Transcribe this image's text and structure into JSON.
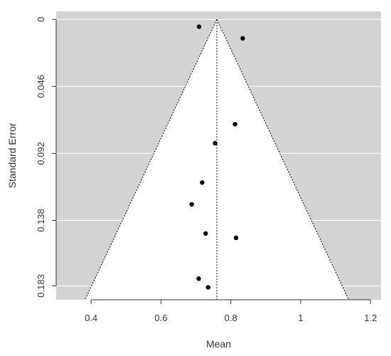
{
  "chart_data": {
    "type": "scatter",
    "chart_kind": "funnel plot",
    "xlabel": "Mean",
    "ylabel": "Standard Error",
    "xlim": [
      0.3,
      1.23
    ],
    "ylim": [
      0.1925,
      -0.0055
    ],
    "y_reversed": true,
    "x_ticks": [
      0.4,
      0.6,
      0.8,
      1.0,
      1.2
    ],
    "x_tick_labels": [
      "0.4",
      "0.6",
      "0.8",
      "1",
      "1.2"
    ],
    "y_ticks": [
      0,
      0.046,
      0.092,
      0.138,
      0.183
    ],
    "y_tick_labels": [
      "0",
      "0.046",
      "0.092",
      "0.138",
      "0.183"
    ],
    "grid": "horizontal at y ticks, white lines",
    "points": [
      {
        "x": 0.709,
        "y": 0.005
      },
      {
        "x": 0.834,
        "y": 0.013
      },
      {
        "x": 0.812,
        "y": 0.072
      },
      {
        "x": 0.755,
        "y": 0.085
      },
      {
        "x": 0.718,
        "y": 0.112
      },
      {
        "x": 0.688,
        "y": 0.127
      },
      {
        "x": 0.728,
        "y": 0.147
      },
      {
        "x": 0.815,
        "y": 0.15
      },
      {
        "x": 0.708,
        "y": 0.178
      },
      {
        "x": 0.735,
        "y": 0.184
      }
    ],
    "funnel": {
      "center": 0.76,
      "z": 1.96,
      "se_max": 0.1925,
      "center_line": "dotted vertical"
    },
    "colors": {
      "outside_region": "#d3d3d3",
      "inside_region": "#ffffff",
      "points": "#000000",
      "grid": "#ffffff",
      "axis": "#333333"
    }
  }
}
